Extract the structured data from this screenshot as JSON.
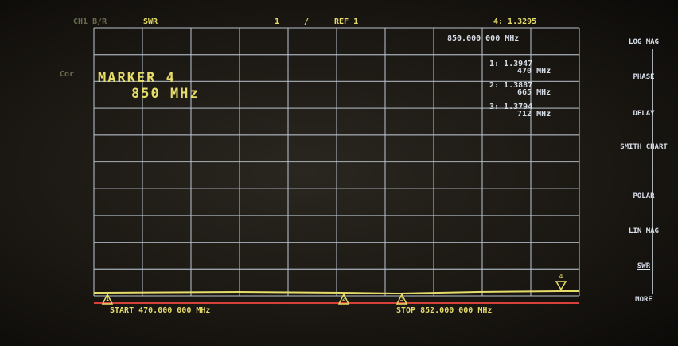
{
  "header": {
    "channel": "CH1 B/R",
    "format": "SWR",
    "scale": "1",
    "slash": "/",
    "reference": "REF 1",
    "correction": "Cor"
  },
  "active_marker": {
    "readout": "4: 1.3295",
    "frequency": "850.000 000 MHz"
  },
  "marker_list": [
    {
      "value": "1: 1.3947",
      "frequency": "470 MHz"
    },
    {
      "value": "2: 1.3887",
      "frequency": "665 MHz"
    },
    {
      "value": "3: 1.3794",
      "frequency": "712 MHz"
    }
  ],
  "marker_entry": {
    "title": "MARKER 4",
    "frequency": "850 MHz"
  },
  "sweep": {
    "start": "START 470.000 000 MHz",
    "stop": "STOP 852.000 000 MHz"
  },
  "markers": [
    "1",
    "2",
    "3",
    "4"
  ],
  "softkeys": [
    "LOG MAG",
    "PHASE",
    "DELAY",
    "SMITH CHART",
    "POLAR",
    "LIN MAG",
    "SWR",
    "MORE"
  ]
}
